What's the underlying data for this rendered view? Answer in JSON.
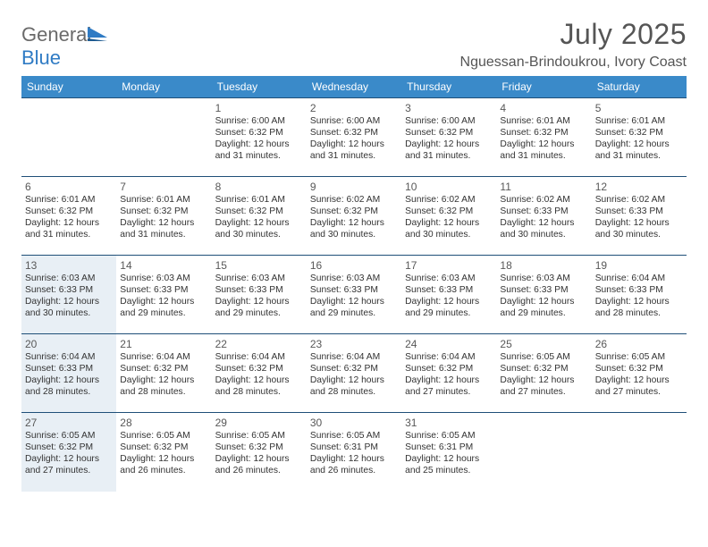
{
  "brand": {
    "general": "General",
    "blue": "Blue"
  },
  "title": "July 2025",
  "location": "Nguessan-Brindoukrou, Ivory Coast",
  "colors": {
    "header_bg": "#3a8ac9",
    "row_border": "#1f4f78",
    "shade_bg": "#e8eff5",
    "title_color": "#555555",
    "logo_gray": "#6a6a6a",
    "logo_blue": "#2f7bc4"
  },
  "days_of_week": [
    "Sunday",
    "Monday",
    "Tuesday",
    "Wednesday",
    "Thursday",
    "Friday",
    "Saturday"
  ],
  "weeks": [
    [
      {
        "empty": true
      },
      {
        "empty": true
      },
      {
        "n": "1",
        "sr": "6:00 AM",
        "ss": "6:32 PM",
        "dl": "12 hours and 31 minutes."
      },
      {
        "n": "2",
        "sr": "6:00 AM",
        "ss": "6:32 PM",
        "dl": "12 hours and 31 minutes."
      },
      {
        "n": "3",
        "sr": "6:00 AM",
        "ss": "6:32 PM",
        "dl": "12 hours and 31 minutes."
      },
      {
        "n": "4",
        "sr": "6:01 AM",
        "ss": "6:32 PM",
        "dl": "12 hours and 31 minutes."
      },
      {
        "n": "5",
        "sr": "6:01 AM",
        "ss": "6:32 PM",
        "dl": "12 hours and 31 minutes."
      }
    ],
    [
      {
        "n": "6",
        "sr": "6:01 AM",
        "ss": "6:32 PM",
        "dl": "12 hours and 31 minutes."
      },
      {
        "n": "7",
        "sr": "6:01 AM",
        "ss": "6:32 PM",
        "dl": "12 hours and 31 minutes."
      },
      {
        "n": "8",
        "sr": "6:01 AM",
        "ss": "6:32 PM",
        "dl": "12 hours and 30 minutes."
      },
      {
        "n": "9",
        "sr": "6:02 AM",
        "ss": "6:32 PM",
        "dl": "12 hours and 30 minutes."
      },
      {
        "n": "10",
        "sr": "6:02 AM",
        "ss": "6:32 PM",
        "dl": "12 hours and 30 minutes."
      },
      {
        "n": "11",
        "sr": "6:02 AM",
        "ss": "6:33 PM",
        "dl": "12 hours and 30 minutes."
      },
      {
        "n": "12",
        "sr": "6:02 AM",
        "ss": "6:33 PM",
        "dl": "12 hours and 30 minutes."
      }
    ],
    [
      {
        "n": "13",
        "sr": "6:03 AM",
        "ss": "6:33 PM",
        "dl": "12 hours and 30 minutes.",
        "shade": true
      },
      {
        "n": "14",
        "sr": "6:03 AM",
        "ss": "6:33 PM",
        "dl": "12 hours and 29 minutes."
      },
      {
        "n": "15",
        "sr": "6:03 AM",
        "ss": "6:33 PM",
        "dl": "12 hours and 29 minutes."
      },
      {
        "n": "16",
        "sr": "6:03 AM",
        "ss": "6:33 PM",
        "dl": "12 hours and 29 minutes."
      },
      {
        "n": "17",
        "sr": "6:03 AM",
        "ss": "6:33 PM",
        "dl": "12 hours and 29 minutes."
      },
      {
        "n": "18",
        "sr": "6:03 AM",
        "ss": "6:33 PM",
        "dl": "12 hours and 29 minutes."
      },
      {
        "n": "19",
        "sr": "6:04 AM",
        "ss": "6:33 PM",
        "dl": "12 hours and 28 minutes."
      }
    ],
    [
      {
        "n": "20",
        "sr": "6:04 AM",
        "ss": "6:33 PM",
        "dl": "12 hours and 28 minutes.",
        "shade": true
      },
      {
        "n": "21",
        "sr": "6:04 AM",
        "ss": "6:32 PM",
        "dl": "12 hours and 28 minutes."
      },
      {
        "n": "22",
        "sr": "6:04 AM",
        "ss": "6:32 PM",
        "dl": "12 hours and 28 minutes."
      },
      {
        "n": "23",
        "sr": "6:04 AM",
        "ss": "6:32 PM",
        "dl": "12 hours and 28 minutes."
      },
      {
        "n": "24",
        "sr": "6:04 AM",
        "ss": "6:32 PM",
        "dl": "12 hours and 27 minutes."
      },
      {
        "n": "25",
        "sr": "6:05 AM",
        "ss": "6:32 PM",
        "dl": "12 hours and 27 minutes."
      },
      {
        "n": "26",
        "sr": "6:05 AM",
        "ss": "6:32 PM",
        "dl": "12 hours and 27 minutes."
      }
    ],
    [
      {
        "n": "27",
        "sr": "6:05 AM",
        "ss": "6:32 PM",
        "dl": "12 hours and 27 minutes.",
        "shade": true
      },
      {
        "n": "28",
        "sr": "6:05 AM",
        "ss": "6:32 PM",
        "dl": "12 hours and 26 minutes."
      },
      {
        "n": "29",
        "sr": "6:05 AM",
        "ss": "6:32 PM",
        "dl": "12 hours and 26 minutes."
      },
      {
        "n": "30",
        "sr": "6:05 AM",
        "ss": "6:31 PM",
        "dl": "12 hours and 26 minutes."
      },
      {
        "n": "31",
        "sr": "6:05 AM",
        "ss": "6:31 PM",
        "dl": "12 hours and 25 minutes."
      },
      {
        "empty": true
      },
      {
        "empty": true
      }
    ]
  ],
  "labels": {
    "sunrise": "Sunrise:",
    "sunset": "Sunset:",
    "daylight": "Daylight:"
  }
}
